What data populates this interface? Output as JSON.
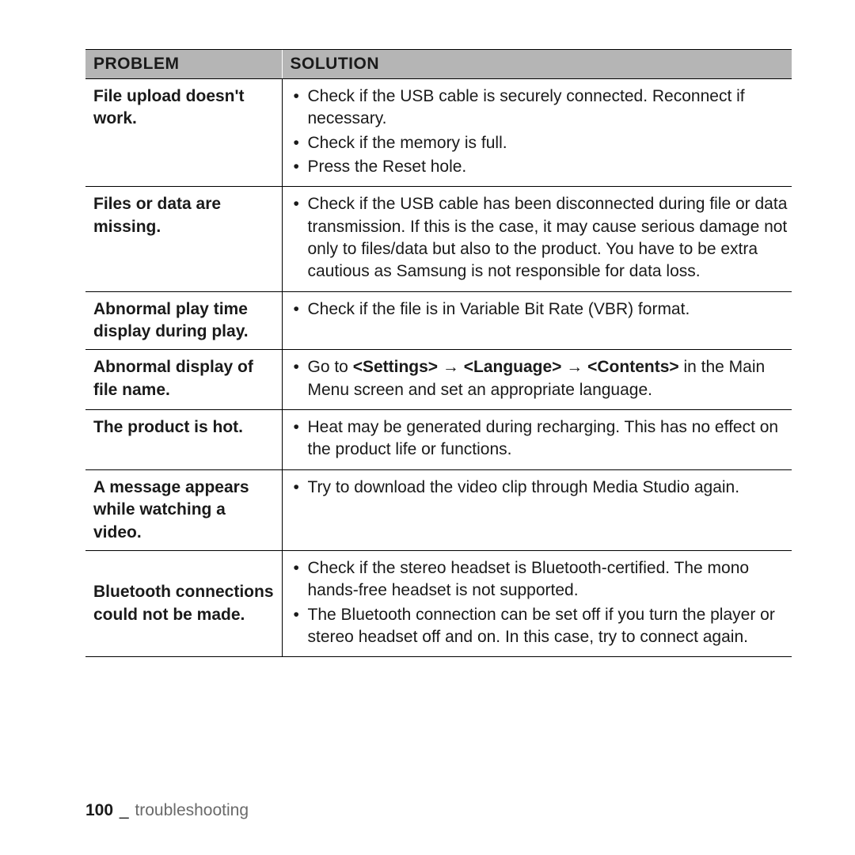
{
  "table": {
    "headers": {
      "problem": "PROBLEM",
      "solution": "SOLUTION"
    },
    "rows": [
      {
        "problem": "File upload doesn't work.",
        "solutions": [
          {
            "text": "Check if the USB cable is securely connected. Reconnect if necessary."
          },
          {
            "text": "Check if the memory is full."
          },
          {
            "text": "Press the Reset hole."
          }
        ]
      },
      {
        "problem": "Files or data are missing.",
        "solutions": [
          {
            "text": "Check if the USB cable has been disconnected during file or data transmission. If this is the case, it may cause serious damage not only to files/data but also to the product. You have to be extra cautious as Samsung is not responsible for data loss."
          }
        ]
      },
      {
        "problem": "Abnormal play time display during play.",
        "solutions": [
          {
            "text": "Check if the file is in Variable Bit Rate (VBR) format."
          }
        ]
      },
      {
        "problem": "Abnormal display of file name.",
        "solutions": [
          {
            "prefix": "Go to ",
            "bold": "<Settings> → <Language> → <Contents>",
            "suffix": " in the Main Menu screen and set an appropriate language."
          }
        ]
      },
      {
        "problem": "The product is hot.",
        "solutions": [
          {
            "text": "Heat may be generated during recharging. This has no effect on the product life or functions."
          }
        ]
      },
      {
        "problem": "A message appears while watching a video.",
        "solutions": [
          {
            "text": "Try to download the video clip through Media Studio again."
          }
        ]
      },
      {
        "problem": "Bluetooth connections could not be made.",
        "vcenter": true,
        "solutions": [
          {
            "text": "Check if the stereo headset is Bluetooth-certified. The mono hands-free headset is not supported."
          },
          {
            "text": "The Bluetooth connection can be set off if you turn the player or stereo headset off and on. In this case, try to connect again."
          }
        ]
      }
    ]
  },
  "footer": {
    "page_number": "100",
    "separator": "_",
    "section": "troubleshooting"
  }
}
